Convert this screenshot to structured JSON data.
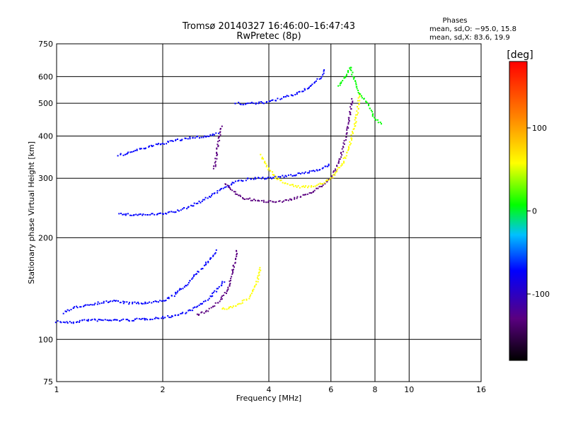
{
  "chart_data": {
    "type": "scatter",
    "title": "Tromsø 20140327 16:46:00–16:47:43",
    "subtitle": "RwPretec (8p)",
    "xlabel": "Frequency [MHz]",
    "ylabel": "Stationary phase Virtual Height [km]",
    "x_scale": "log",
    "y_scale": "log",
    "xlim": [
      1,
      16
    ],
    "ylim": [
      75,
      750
    ],
    "x_ticks": [
      1,
      2,
      4,
      6,
      8,
      10,
      16
    ],
    "y_ticks": [
      75,
      100,
      200,
      300,
      400,
      500,
      600,
      750
    ],
    "grid": true,
    "phase_info": {
      "heading": "Phases",
      "line_o": "mean, sd,O: −95.0, 15.8",
      "line_x": "mean, sd,X:  83.6, 19.9"
    },
    "colorbar": {
      "label": "[deg]",
      "range": [
        -180,
        180
      ],
      "ticks": [
        100,
        0,
        -100
      ],
      "colors": [
        "#000000",
        "#5a0080",
        "#0000ff",
        "#00c0ff",
        "#00ff00",
        "#ffff00",
        "#ff8000",
        "#ff0000"
      ]
    },
    "series": [
      {
        "color_phase": -100,
        "segments": [
          [
            [
              1.0,
              113
            ],
            [
              1.1,
              112
            ],
            [
              1.2,
              114
            ],
            [
              1.4,
              114
            ],
            [
              1.6,
              114
            ],
            [
              1.8,
              115
            ],
            [
              2.0,
              116
            ],
            [
              2.2,
              118
            ],
            [
              2.4,
              122
            ],
            [
              2.6,
              128
            ],
            [
              2.8,
              137
            ],
            [
              2.9,
              143
            ],
            [
              3.0,
              150
            ]
          ],
          [
            [
              1.05,
              120
            ],
            [
              1.15,
              125
            ],
            [
              1.3,
              128
            ],
            [
              1.45,
              130
            ],
            [
              1.6,
              128
            ],
            [
              1.8,
              128
            ],
            [
              2.0,
              130
            ],
            [
              2.15,
              135
            ],
            [
              2.3,
              143
            ],
            [
              2.45,
              153
            ],
            [
              2.6,
              163
            ],
            [
              2.75,
              175
            ],
            [
              2.85,
              185
            ]
          ],
          [
            [
              1.5,
              235
            ],
            [
              1.6,
              234
            ],
            [
              1.8,
              234
            ],
            [
              2.0,
              235
            ],
            [
              2.2,
              240
            ],
            [
              2.4,
              248
            ],
            [
              2.6,
              258
            ],
            [
              2.8,
              270
            ],
            [
              3.0,
              282
            ],
            [
              3.2,
              292
            ],
            [
              3.5,
              298
            ],
            [
              3.8,
              300
            ],
            [
              4.2,
              302
            ],
            [
              4.6,
              305
            ],
            [
              5.0,
              310
            ],
            [
              5.5,
              318
            ],
            [
              5.8,
              325
            ],
            [
              6.0,
              330
            ]
          ],
          [
            [
              3.2,
              500
            ],
            [
              3.4,
              498
            ],
            [
              3.7,
              500
            ],
            [
              4.0,
              505
            ],
            [
              4.3,
              515
            ],
            [
              4.7,
              530
            ],
            [
              5.0,
              545
            ],
            [
              5.3,
              565
            ],
            [
              5.6,
              595
            ],
            [
              5.8,
              630
            ]
          ],
          [
            [
              1.5,
              350
            ],
            [
              1.8,
              370
            ],
            [
              2.1,
              385
            ],
            [
              2.4,
              395
            ],
            [
              2.7,
              400
            ],
            [
              2.9,
              410
            ]
          ]
        ]
      },
      {
        "color_phase": -150,
        "segments": [
          [
            [
              2.5,
              118
            ],
            [
              2.7,
              122
            ],
            [
              2.9,
              130
            ],
            [
              3.05,
              140
            ],
            [
              3.15,
              155
            ],
            [
              3.2,
              170
            ],
            [
              3.25,
              185
            ]
          ],
          [
            [
              3.0,
              290
            ],
            [
              3.2,
              272
            ],
            [
              3.4,
              262
            ],
            [
              3.7,
              257
            ],
            [
              4.0,
              256
            ],
            [
              4.4,
              257
            ],
            [
              4.8,
              262
            ],
            [
              5.2,
              270
            ],
            [
              5.6,
              283
            ],
            [
              6.0,
              300
            ],
            [
              6.3,
              330
            ],
            [
              6.5,
              370
            ],
            [
              6.7,
              420
            ],
            [
              6.8,
              470
            ],
            [
              6.9,
              520
            ]
          ],
          [
            [
              2.8,
              320
            ],
            [
              2.85,
              360
            ],
            [
              2.9,
              400
            ],
            [
              2.95,
              430
            ]
          ]
        ]
      },
      {
        "color_phase": 100,
        "segments": [
          [
            [
              2.95,
              123
            ],
            [
              3.1,
              124
            ],
            [
              3.3,
              127
            ],
            [
              3.5,
              133
            ],
            [
              3.65,
              142
            ],
            [
              3.75,
              155
            ],
            [
              3.8,
              165
            ]
          ],
          [
            [
              3.8,
              350
            ],
            [
              4.0,
              320
            ],
            [
              4.2,
              300
            ],
            [
              4.5,
              288
            ],
            [
              4.9,
              283
            ],
            [
              5.3,
              284
            ],
            [
              5.7,
              290
            ],
            [
              6.1,
              305
            ],
            [
              6.5,
              335
            ],
            [
              6.8,
              380
            ],
            [
              7.0,
              430
            ],
            [
              7.15,
              480
            ],
            [
              7.25,
              540
            ]
          ]
        ]
      },
      {
        "color_phase": 30,
        "segments": [
          [
            [
              6.3,
              560
            ],
            [
              6.6,
              600
            ],
            [
              6.8,
              640
            ],
            [
              7.2,
              540
            ],
            [
              7.6,
              500
            ],
            [
              8.0,
              450
            ],
            [
              8.4,
              430
            ]
          ]
        ]
      }
    ]
  }
}
